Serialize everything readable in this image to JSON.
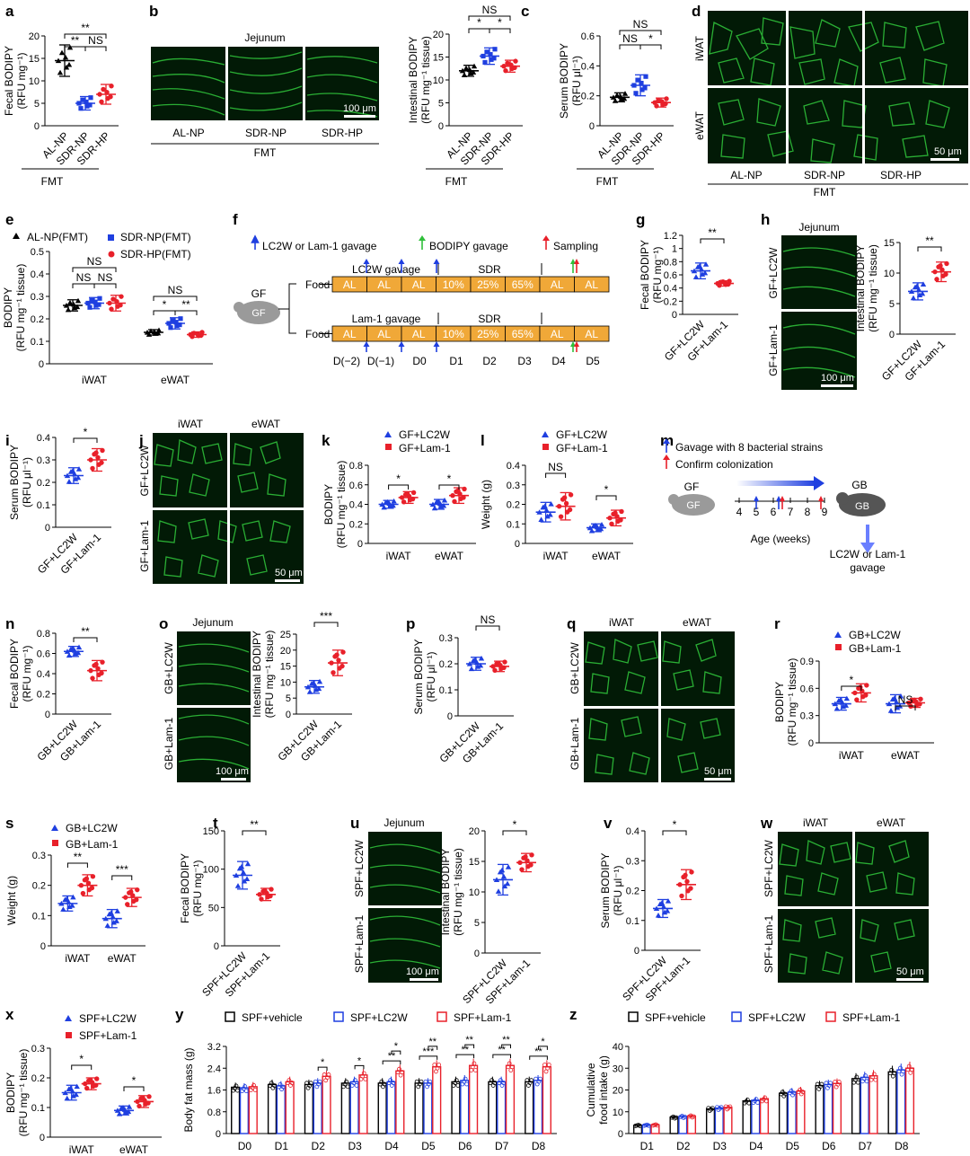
{
  "colors": {
    "AL": "#000000",
    "NP": "#1f3fe0",
    "HP": "#e8202a",
    "LC2W": "#1f3fe0",
    "Lam1": "#e8202a",
    "vehicle": "#000000",
    "green": "#2fbf3a",
    "sched": "#f0a838"
  },
  "labels": {
    "fmt": "FMT",
    "jejunum": "Jejunum",
    "iwat": "iWAT",
    "ewat": "eWAT",
    "scale100": "100 μm",
    "scale50": "50 μm",
    "alnp": "AL-NP",
    "sdrnp": "SDR-NP",
    "sdrhp": "SDR-HP",
    "gflc": "GF+LC2W",
    "gflam": "GF+Lam-1",
    "gblc": "GB+LC2W",
    "gblam": "GB+Lam-1",
    "spflc": "SPF+LC2W",
    "spflam": "SPF+Lam-1",
    "spfveh": "SPF+vehicle",
    "alnpfmt": "AL-NP(FMT)",
    "sdrnpfmt": "SDR-NP(FMT)",
    "sdrhpfmt": "SDR-HP(FMT)"
  },
  "ylabels": {
    "fecal": "Fecal BODIPY",
    "fecalu": "(RFU mg⁻¹)",
    "intest": "Intestinal BODIPY",
    "intestu": "(RFU mg⁻¹ tissue)",
    "serum": "Serum BODIPY",
    "serumu": "(RFU μl⁻¹)",
    "bod": "BODIPY",
    "bodu": "(RFU mg⁻¹ tissue)",
    "weight": "Weight (g)",
    "bfm": "Body fat mass (g)",
    "food1": "Cumulative",
    "food2": "food intake (g)"
  },
  "schematic": {
    "leg1": "LC2W or Lam-1 gavage",
    "leg2": "BODIPY gavage",
    "leg3": "Sampling",
    "gf": "GF",
    "food": "Food",
    "lcg": "LC2W gavage",
    "lamg": "Lam-1 gavage",
    "sdr": "SDR",
    "cells": [
      "AL",
      "AL",
      "AL",
      "10%",
      "25%",
      "65%",
      "AL",
      "AL"
    ],
    "days": [
      "D(−2)",
      "D(−1)",
      "D0",
      "D1",
      "D2",
      "D3",
      "D4",
      "D5"
    ]
  },
  "schematic_m": {
    "leg1": "Gavage with 8 bacterial strains",
    "leg2": "Confirm colonization",
    "gf": "GF",
    "gb": "GB",
    "ages": [
      "4",
      "5",
      "6",
      "7",
      "8",
      "9"
    ],
    "agelabel": "Age (weeks)",
    "gav1": "LC2W or Lam-1",
    "gav2": "gavage"
  },
  "sig": {
    "ns": "NS",
    "s1": "*",
    "s2": "**",
    "s3": "***"
  },
  "days9": [
    "D0",
    "D1",
    "D2",
    "D3",
    "D4",
    "D5",
    "D6",
    "D7",
    "D8"
  ],
  "days8": [
    "D1",
    "D2",
    "D3",
    "D4",
    "D5",
    "D6",
    "D7",
    "D8"
  ],
  "chart_data": [
    {
      "panel": "a",
      "type": "scatter",
      "ylabel": "Fecal BODIPY (RFU mg⁻¹)",
      "ylim": [
        0,
        20
      ],
      "categories": [
        "AL-NP",
        "SDR-NP",
        "SDR-HP"
      ],
      "means": [
        14.5,
        5,
        7
      ]
    },
    {
      "panel": "b",
      "type": "scatter",
      "ylabel": "Intestinal BODIPY (RFU mg⁻¹ tissue)",
      "ylim": [
        0,
        20
      ],
      "categories": [
        "AL-NP",
        "SDR-NP",
        "SDR-HP"
      ],
      "means": [
        12,
        15.2,
        13
      ]
    },
    {
      "panel": "c",
      "type": "scatter",
      "ylabel": "Serum BODIPY (RFU μl⁻¹)",
      "ylim": [
        0,
        0.6
      ],
      "categories": [
        "AL-NP",
        "SDR-NP",
        "SDR-HP"
      ],
      "means": [
        0.19,
        0.27,
        0.155
      ]
    },
    {
      "panel": "e",
      "type": "scatter",
      "ylabel": "BODIPY (RFU mg⁻¹ tissue)",
      "ylim": [
        0,
        0.5
      ],
      "categories": [
        "iWAT",
        "eWAT"
      ],
      "series": [
        {
          "name": "AL-NP(FMT)",
          "values": [
            0.26,
            0.14
          ]
        },
        {
          "name": "SDR-NP(FMT)",
          "values": [
            0.27,
            0.18
          ]
        },
        {
          "name": "SDR-HP(FMT)",
          "values": [
            0.27,
            0.13
          ]
        }
      ]
    },
    {
      "panel": "g",
      "type": "scatter",
      "ylabel": "Fecal BODIPY (RFU mg⁻¹)",
      "ylim": [
        0,
        1.2
      ],
      "categories": [
        "GF+LC2W",
        "GF+Lam-1"
      ],
      "means": [
        0.66,
        0.47
      ]
    },
    {
      "panel": "h",
      "type": "scatter",
      "ylabel": "Intestinal BODIPY (RFU mg⁻¹ tissue)",
      "ylim": [
        0,
        15
      ],
      "categories": [
        "GF+LC2W",
        "GF+Lam-1"
      ],
      "means": [
        7,
        10.2
      ]
    },
    {
      "panel": "i",
      "type": "scatter",
      "ylabel": "Serum BODIPY (RFU μl⁻¹)",
      "ylim": [
        0,
        0.4
      ],
      "categories": [
        "GF+LC2W",
        "GF+Lam-1"
      ],
      "means": [
        0.23,
        0.3
      ]
    },
    {
      "panel": "k",
      "type": "scatter",
      "ylabel": "BODIPY (RFU mg⁻¹ tissue)",
      "ylim": [
        0,
        0.8
      ],
      "categories": [
        "iWAT",
        "eWAT"
      ],
      "series": [
        {
          "name": "GF+LC2W",
          "values": [
            0.4,
            0.4
          ]
        },
        {
          "name": "GF+Lam-1",
          "values": [
            0.47,
            0.49
          ]
        }
      ]
    },
    {
      "panel": "l",
      "type": "scatter",
      "ylabel": "Weight (g)",
      "ylim": [
        0,
        0.4
      ],
      "categories": [
        "iWAT",
        "eWAT"
      ],
      "series": [
        {
          "name": "GF+LC2W",
          "values": [
            0.16,
            0.08
          ]
        },
        {
          "name": "GF+Lam-1",
          "values": [
            0.19,
            0.13
          ]
        }
      ]
    },
    {
      "panel": "n",
      "type": "scatter",
      "ylabel": "Fecal BODIPY (RFU mg⁻¹)",
      "ylim": [
        0,
        0.8
      ],
      "categories": [
        "GB+LC2W",
        "GB+Lam-1"
      ],
      "means": [
        0.62,
        0.43
      ]
    },
    {
      "panel": "o",
      "type": "scatter",
      "ylabel": "Intestinal BODIPY (RFU mg⁻¹ tissue)",
      "ylim": [
        0,
        25
      ],
      "categories": [
        "GB+LC2W",
        "GB+Lam-1"
      ],
      "means": [
        8.5,
        16
      ]
    },
    {
      "panel": "p",
      "type": "scatter",
      "ylabel": "Serum BODIPY (RFU μl⁻¹)",
      "ylim": [
        0,
        0.3
      ],
      "categories": [
        "GB+LC2W",
        "GB+Lam-1"
      ],
      "means": [
        0.2,
        0.19
      ]
    },
    {
      "panel": "r",
      "type": "scatter",
      "ylabel": "BODIPY (RFU mg⁻¹ tissue)",
      "ylim": [
        0,
        0.9
      ],
      "categories": [
        "iWAT",
        "eWAT"
      ],
      "series": [
        {
          "name": "GB+LC2W",
          "values": [
            0.43,
            0.43
          ]
        },
        {
          "name": "GB+Lam-1",
          "values": [
            0.55,
            0.44
          ]
        }
      ]
    },
    {
      "panel": "s",
      "type": "scatter",
      "ylabel": "Weight (g)",
      "ylim": [
        0,
        0.3
      ],
      "categories": [
        "iWAT",
        "eWAT"
      ],
      "series": [
        {
          "name": "GB+LC2W",
          "values": [
            0.14,
            0.09
          ]
        },
        {
          "name": "GB+Lam-1",
          "values": [
            0.2,
            0.16
          ]
        }
      ]
    },
    {
      "panel": "t",
      "type": "scatter",
      "ylabel": "Fecal BODIPY (RFU mg⁻¹)",
      "ylim": [
        0,
        150
      ],
      "categories": [
        "SPF+LC2W",
        "SPF+Lam-1"
      ],
      "means": [
        92,
        67
      ]
    },
    {
      "panel": "u",
      "type": "scatter",
      "ylabel": "Intestinal BODIPY (RFU mg⁻¹ tissue)",
      "ylim": [
        0,
        20
      ],
      "categories": [
        "SPF+LC2W",
        "SPF+Lam-1"
      ],
      "means": [
        12,
        14.8
      ]
    },
    {
      "panel": "v",
      "type": "scatter",
      "ylabel": "Serum BODIPY (RFU μl⁻¹)",
      "ylim": [
        0,
        0.4
      ],
      "categories": [
        "SPF+LC2W",
        "SPF+Lam-1"
      ],
      "means": [
        0.14,
        0.22
      ]
    },
    {
      "panel": "x",
      "type": "scatter",
      "ylabel": "BODIPY (RFU mg⁻¹ tissue)",
      "ylim": [
        0,
        0.3
      ],
      "categories": [
        "iWAT",
        "eWAT"
      ],
      "series": [
        {
          "name": "SPF+LC2W",
          "values": [
            0.15,
            0.09
          ]
        },
        {
          "name": "SPF+Lam-1",
          "values": [
            0.18,
            0.12
          ]
        }
      ]
    },
    {
      "panel": "y",
      "type": "bar",
      "ylabel": "Body fat mass (g)",
      "ylim": [
        0,
        3.2
      ],
      "categories": [
        "D0",
        "D1",
        "D2",
        "D3",
        "D4",
        "D5",
        "D6",
        "D7",
        "D8"
      ],
      "series": [
        {
          "name": "SPF+vehicle",
          "values": [
            1.7,
            1.8,
            1.8,
            1.85,
            1.85,
            1.85,
            1.9,
            1.9,
            1.9
          ]
        },
        {
          "name": "SPF+LC2W",
          "values": [
            1.68,
            1.75,
            1.85,
            1.9,
            1.9,
            1.85,
            1.95,
            1.9,
            1.95
          ]
        },
        {
          "name": "SPF+Lam-1",
          "values": [
            1.72,
            1.9,
            2.1,
            2.15,
            2.3,
            2.45,
            2.5,
            2.5,
            2.45
          ]
        }
      ]
    },
    {
      "panel": "z",
      "type": "bar",
      "ylabel": "Cumulative food intake (g)",
      "ylim": [
        0,
        40
      ],
      "categories": [
        "D1",
        "D2",
        "D3",
        "D4",
        "D5",
        "D6",
        "D7",
        "D8"
      ],
      "series": [
        {
          "name": "SPF+vehicle",
          "values": [
            3.8,
            7.5,
            11.3,
            15,
            18.5,
            22,
            25.2,
            28.3
          ]
        },
        {
          "name": "SPF+LC2W",
          "values": [
            3.9,
            7.8,
            11.7,
            15.3,
            19,
            22.5,
            25.8,
            29.2
          ]
        },
        {
          "name": "SPF+Lam-1",
          "values": [
            4,
            8,
            12,
            16,
            19.5,
            23,
            26.5,
            30
          ]
        }
      ]
    }
  ]
}
